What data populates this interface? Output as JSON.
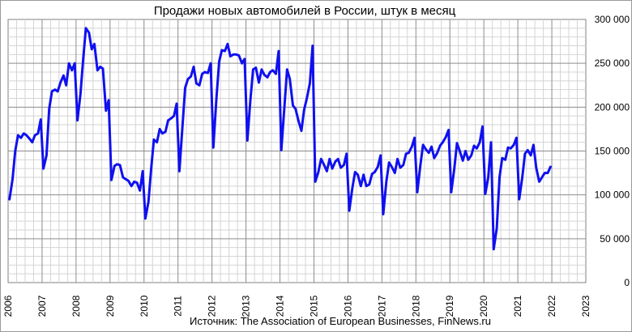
{
  "chart_data": {
    "type": "line",
    "title": "Продажи новых автомобилей в России, штук в месяц",
    "source": "Источник: The Association of European Businesses, FinNews.ru",
    "x_ticks": [
      "2006",
      "2007",
      "2008",
      "2009",
      "2010",
      "2011",
      "2012",
      "2013",
      "2014",
      "2015",
      "2016",
      "2017",
      "2018",
      "2019",
      "2020",
      "2021",
      "2022",
      "2023"
    ],
    "y_ticks": [
      {
        "v": 0,
        "label": "0"
      },
      {
        "v": 50000,
        "label": "50 000"
      },
      {
        "v": 100000,
        "label": "100 000"
      },
      {
        "v": 150000,
        "label": "150 000"
      },
      {
        "v": 200000,
        "label": "200 000"
      },
      {
        "v": 250000,
        "label": "250 000"
      },
      {
        "v": 300000,
        "label": "300 000"
      }
    ],
    "xlim": [
      2006,
      2023
    ],
    "ylim": [
      0,
      300000
    ],
    "y_axis_side": "right",
    "grid": true,
    "series_color": "#1010f0",
    "series": [
      {
        "points": [
          [
            2006.04,
            95000
          ],
          [
            2006.13,
            118000
          ],
          [
            2006.21,
            150000
          ],
          [
            2006.29,
            168000
          ],
          [
            2006.38,
            165000
          ],
          [
            2006.46,
            170000
          ],
          [
            2006.54,
            168000
          ],
          [
            2006.63,
            164000
          ],
          [
            2006.71,
            160000
          ],
          [
            2006.79,
            168000
          ],
          [
            2006.88,
            170000
          ],
          [
            2006.96,
            186000
          ],
          [
            2007.04,
            130000
          ],
          [
            2007.13,
            145000
          ],
          [
            2007.21,
            198000
          ],
          [
            2007.29,
            218000
          ],
          [
            2007.38,
            220000
          ],
          [
            2007.46,
            218000
          ],
          [
            2007.54,
            228000
          ],
          [
            2007.63,
            236000
          ],
          [
            2007.71,
            225000
          ],
          [
            2007.79,
            250000
          ],
          [
            2007.88,
            242000
          ],
          [
            2007.96,
            250000
          ],
          [
            2008.04,
            185000
          ],
          [
            2008.13,
            215000
          ],
          [
            2008.21,
            255000
          ],
          [
            2008.29,
            290000
          ],
          [
            2008.38,
            285000
          ],
          [
            2008.46,
            266000
          ],
          [
            2008.54,
            272000
          ],
          [
            2008.63,
            242000
          ],
          [
            2008.71,
            246000
          ],
          [
            2008.79,
            244000
          ],
          [
            2008.88,
            196000
          ],
          [
            2008.96,
            208000
          ],
          [
            2009.04,
            117000
          ],
          [
            2009.13,
            133000
          ],
          [
            2009.21,
            135000
          ],
          [
            2009.29,
            134000
          ],
          [
            2009.38,
            120000
          ],
          [
            2009.46,
            118000
          ],
          [
            2009.54,
            116000
          ],
          [
            2009.63,
            110000
          ],
          [
            2009.71,
            115000
          ],
          [
            2009.79,
            114000
          ],
          [
            2009.88,
            105000
          ],
          [
            2009.96,
            127000
          ],
          [
            2010.04,
            73000
          ],
          [
            2010.13,
            92000
          ],
          [
            2010.21,
            130000
          ],
          [
            2010.29,
            163000
          ],
          [
            2010.38,
            160000
          ],
          [
            2010.46,
            175000
          ],
          [
            2010.54,
            170000
          ],
          [
            2010.63,
            172000
          ],
          [
            2010.71,
            185000
          ],
          [
            2010.79,
            187000
          ],
          [
            2010.88,
            190000
          ],
          [
            2010.96,
            204000
          ],
          [
            2011.04,
            127000
          ],
          [
            2011.13,
            178000
          ],
          [
            2011.21,
            222000
          ],
          [
            2011.29,
            232000
          ],
          [
            2011.38,
            235000
          ],
          [
            2011.46,
            246000
          ],
          [
            2011.54,
            227000
          ],
          [
            2011.63,
            225000
          ],
          [
            2011.71,
            238000
          ],
          [
            2011.79,
            240000
          ],
          [
            2011.88,
            239000
          ],
          [
            2011.96,
            250000
          ],
          [
            2012.04,
            154000
          ],
          [
            2012.13,
            210000
          ],
          [
            2012.21,
            252000
          ],
          [
            2012.29,
            265000
          ],
          [
            2012.38,
            264000
          ],
          [
            2012.46,
            272000
          ],
          [
            2012.54,
            258000
          ],
          [
            2012.63,
            260000
          ],
          [
            2012.71,
            260000
          ],
          [
            2012.79,
            259000
          ],
          [
            2012.88,
            250000
          ],
          [
            2012.96,
            255000
          ],
          [
            2013.04,
            162000
          ],
          [
            2013.13,
            208000
          ],
          [
            2013.21,
            243000
          ],
          [
            2013.29,
            245000
          ],
          [
            2013.38,
            228000
          ],
          [
            2013.46,
            243000
          ],
          [
            2013.54,
            237000
          ],
          [
            2013.63,
            234000
          ],
          [
            2013.71,
            240000
          ],
          [
            2013.79,
            242000
          ],
          [
            2013.88,
            238000
          ],
          [
            2013.96,
            264000
          ],
          [
            2014.04,
            151000
          ],
          [
            2014.13,
            200000
          ],
          [
            2014.21,
            243000
          ],
          [
            2014.29,
            232000
          ],
          [
            2014.38,
            202000
          ],
          [
            2014.46,
            198000
          ],
          [
            2014.54,
            185000
          ],
          [
            2014.63,
            173000
          ],
          [
            2014.71,
            197000
          ],
          [
            2014.79,
            210000
          ],
          [
            2014.88,
            227000
          ],
          [
            2014.96,
            270000
          ],
          [
            2015.04,
            115000
          ],
          [
            2015.13,
            126000
          ],
          [
            2015.21,
            141000
          ],
          [
            2015.29,
            135000
          ],
          [
            2015.38,
            127000
          ],
          [
            2015.46,
            141000
          ],
          [
            2015.54,
            130000
          ],
          [
            2015.63,
            138000
          ],
          [
            2015.71,
            141000
          ],
          [
            2015.79,
            131000
          ],
          [
            2015.88,
            134000
          ],
          [
            2015.96,
            147000
          ],
          [
            2016.04,
            82000
          ],
          [
            2016.13,
            108000
          ],
          [
            2016.21,
            126000
          ],
          [
            2016.29,
            123000
          ],
          [
            2016.38,
            110000
          ],
          [
            2016.46,
            123000
          ],
          [
            2016.54,
            110000
          ],
          [
            2016.63,
            112000
          ],
          [
            2016.71,
            124000
          ],
          [
            2016.79,
            126000
          ],
          [
            2016.88,
            132000
          ],
          [
            2016.96,
            145000
          ],
          [
            2017.04,
            78000
          ],
          [
            2017.13,
            115000
          ],
          [
            2017.21,
            137000
          ],
          [
            2017.29,
            132000
          ],
          [
            2017.38,
            125000
          ],
          [
            2017.46,
            141000
          ],
          [
            2017.54,
            131000
          ],
          [
            2017.63,
            134000
          ],
          [
            2017.71,
            147000
          ],
          [
            2017.79,
            148000
          ],
          [
            2017.88,
            155000
          ],
          [
            2017.96,
            165000
          ],
          [
            2018.04,
            103000
          ],
          [
            2018.13,
            133000
          ],
          [
            2018.21,
            157000
          ],
          [
            2018.29,
            152000
          ],
          [
            2018.38,
            148000
          ],
          [
            2018.46,
            155000
          ],
          [
            2018.54,
            142000
          ],
          [
            2018.63,
            148000
          ],
          [
            2018.71,
            156000
          ],
          [
            2018.79,
            160000
          ],
          [
            2018.88,
            166000
          ],
          [
            2018.96,
            174000
          ],
          [
            2019.04,
            103000
          ],
          [
            2019.13,
            130000
          ],
          [
            2019.21,
            159000
          ],
          [
            2019.29,
            150000
          ],
          [
            2019.38,
            139000
          ],
          [
            2019.46,
            150000
          ],
          [
            2019.54,
            140000
          ],
          [
            2019.63,
            145000
          ],
          [
            2019.71,
            156000
          ],
          [
            2019.79,
            153000
          ],
          [
            2019.88,
            160000
          ],
          [
            2019.96,
            178000
          ],
          [
            2020.04,
            101000
          ],
          [
            2020.13,
            120000
          ],
          [
            2020.21,
            160000
          ],
          [
            2020.29,
            38000
          ],
          [
            2020.38,
            62000
          ],
          [
            2020.46,
            120000
          ],
          [
            2020.54,
            142000
          ],
          [
            2020.63,
            140000
          ],
          [
            2020.71,
            154000
          ],
          [
            2020.79,
            153000
          ],
          [
            2020.88,
            157000
          ],
          [
            2020.96,
            165000
          ],
          [
            2021.04,
            95000
          ],
          [
            2021.13,
            120000
          ],
          [
            2021.21,
            147000
          ],
          [
            2021.29,
            151000
          ],
          [
            2021.38,
            145000
          ],
          [
            2021.46,
            157000
          ],
          [
            2021.54,
            131000
          ],
          [
            2021.63,
            115000
          ],
          [
            2021.71,
            120000
          ],
          [
            2021.79,
            125000
          ],
          [
            2021.88,
            125000
          ],
          [
            2021.96,
            132000
          ]
        ]
      }
    ]
  }
}
